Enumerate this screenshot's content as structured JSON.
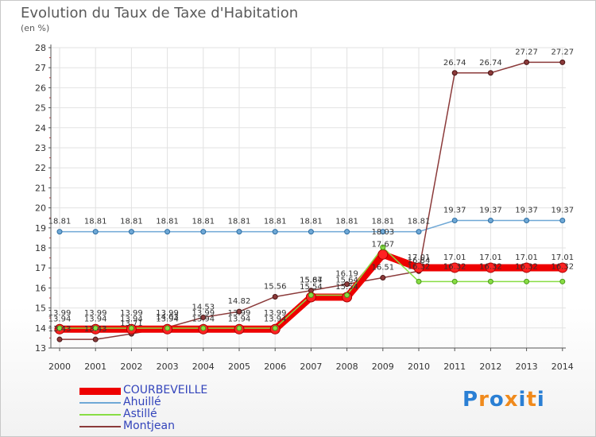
{
  "chart_data": {
    "type": "line",
    "title": "Evolution du Taux de Taxe d'Habitation",
    "ylabel": "(en %)",
    "xlabel": "",
    "ylim": [
      13,
      28
    ],
    "yticks": [
      13,
      14,
      15,
      16,
      17,
      18,
      19,
      20,
      21,
      22,
      23,
      24,
      25,
      26,
      27,
      28
    ],
    "categories": [
      "2000",
      "2001",
      "2002",
      "2003",
      "2004",
      "2005",
      "2006",
      "2007",
      "2008",
      "2009",
      "2010",
      "2011",
      "2012",
      "2013",
      "2014"
    ],
    "series": [
      {
        "name": "COURBEVEILLE",
        "color": "#ee0000",
        "values": [
          13.94,
          13.94,
          13.94,
          13.94,
          13.94,
          13.94,
          13.94,
          15.54,
          15.54,
          17.67,
          17.01,
          17.01,
          17.01,
          17.01,
          17.01
        ],
        "labels": [
          "13.94",
          "13.94",
          "13.94",
          "13.94",
          "13.94",
          "13.94",
          "13.94",
          "15.54",
          "15.54",
          "17.67",
          "17.01",
          "17.01",
          "17.01",
          "17.01",
          "17.01"
        ]
      },
      {
        "name": "Ahuillé",
        "color": "#6fa8d6",
        "values": [
          18.81,
          18.81,
          18.81,
          18.81,
          18.81,
          18.81,
          18.81,
          18.81,
          18.81,
          18.81,
          18.81,
          19.37,
          19.37,
          19.37,
          19.37
        ],
        "labels": [
          "18.81",
          "18.81",
          "18.81",
          "18.81",
          "18.81",
          "18.81",
          "18.81",
          "18.81",
          "18.81",
          "18.81",
          "18.81",
          "19.37",
          "19.37",
          "19.37",
          "19.37"
        ]
      },
      {
        "name": "Astillé",
        "color": "#88dd44",
        "values": [
          13.99,
          13.99,
          13.99,
          13.99,
          13.99,
          13.99,
          13.99,
          15.64,
          15.64,
          18.03,
          16.32,
          16.32,
          16.32,
          16.32,
          16.32
        ],
        "labels": [
          "13.99",
          "13.99",
          "13.99",
          "13.99",
          "13.99",
          "13.99",
          "13.99",
          "15.64",
          "15.64",
          "18.03",
          "16.32",
          "16.32",
          "16.32",
          "16.32",
          "16.32"
        ]
      },
      {
        "name": "Montjean",
        "color": "#8b3a3a",
        "values": [
          13.43,
          13.43,
          13.71,
          14.03,
          14.53,
          14.82,
          15.56,
          15.87,
          16.19,
          16.51,
          16.84,
          26.74,
          26.74,
          27.27,
          27.27
        ],
        "labels": [
          "13.43",
          "13.43",
          "13.71",
          "14.03",
          "14.53",
          "14.82",
          "15.56",
          "15.87",
          "16.19",
          "16.51",
          "16.84",
          "26.74",
          "26.74",
          "27.27",
          "27.27"
        ]
      }
    ],
    "legend_position": "bottom-left"
  },
  "logo": {
    "text": "Proxiti",
    "colors": [
      "#2a7fd4",
      "#f08a1c",
      "#2a7fd4",
      "#f08a1c",
      "#2a7fd4",
      "#f08a1c",
      "#2a7fd4"
    ]
  }
}
